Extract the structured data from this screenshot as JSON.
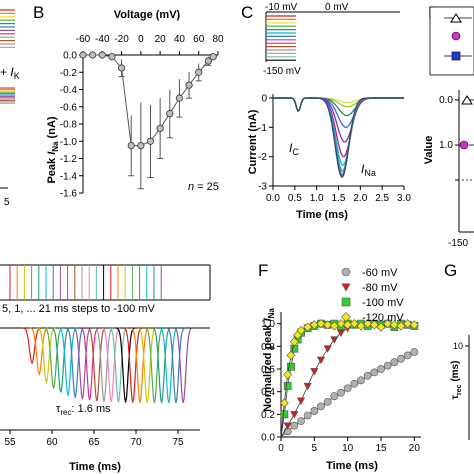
{
  "panels": {
    "A": {
      "annot_prefix": "+ ",
      "annot_symbol": "I",
      "annot_sub": "K",
      "x_tick_label": "5",
      "sweep_colors": [
        "#e41a1c",
        "#ff7f00",
        "#ffd92f",
        "#4daf4a",
        "#1b9e77",
        "#377eb8",
        "#984ea3",
        "#e7298a",
        "#66c2a5",
        "#a65628",
        "#999999",
        "#f781bf"
      ]
    },
    "B": {
      "letter": "B",
      "n_text": "n = 25",
      "chart_data": {
        "type": "scatter",
        "title": "",
        "xlabel": "Voltage (mV)",
        "ylabel_prefix": "Peak ",
        "ylabel_symbol": "I",
        "ylabel_sub": "Na",
        "ylabel_unit": " (nA)",
        "xlim": [
          -60,
          80
        ],
        "ylim": [
          -1.6,
          0.0
        ],
        "xticks": [
          -60,
          -40,
          -20,
          0,
          20,
          40,
          60,
          80
        ],
        "yticks": [
          0.0,
          -0.2,
          -0.4,
          -0.6,
          -0.8,
          -1.0,
          -1.2,
          -1.4,
          -1.6
        ],
        "x": [
          -60,
          -50,
          -40,
          -30,
          -20,
          -10,
          0,
          10,
          20,
          30,
          40,
          50,
          60,
          70,
          75
        ],
        "y": [
          0.0,
          0.0,
          0.0,
          -0.02,
          -0.15,
          -1.05,
          -1.05,
          -1.0,
          -0.85,
          -0.68,
          -0.5,
          -0.35,
          -0.2,
          -0.07,
          -0.02
        ],
        "err": [
          0,
          0,
          0,
          0.02,
          0.1,
          0.35,
          0.5,
          0.42,
          0.35,
          0.28,
          0.22,
          0.15,
          0.1,
          0.05,
          0.02
        ]
      }
    },
    "C": {
      "letter": "C",
      "v_hold": "-10 mV",
      "v_test": "0 mV",
      "v_base": "-150 mV",
      "ic_symbol": "I",
      "ic_sub": "C",
      "ina_symbol": "I",
      "ina_sub": "Na",
      "chart_data": {
        "type": "line",
        "title": "",
        "xlabel": "Time (ms)",
        "ylabel": "Current (nA)",
        "xlim": [
          0.0,
          3.0
        ],
        "ylim": [
          -3,
          0
        ],
        "xticks": [
          0.0,
          0.5,
          1.0,
          1.5,
          2.0,
          2.5,
          3.0
        ],
        "yticks": [
          0,
          -1,
          -2,
          -3
        ],
        "series_peaks": [
          -0.15,
          -0.3,
          -0.6,
          -1.0,
          -1.5,
          -2.0,
          -2.3,
          -2.5,
          -2.6,
          -2.65,
          -2.7
        ],
        "series_colors": [
          "#d4e84a",
          "#9acd32",
          "#2e8b57",
          "#4169e1",
          "#7b2fbe",
          "#c71585",
          "#00bcd4",
          "#1e90ff",
          "#3cb371",
          "#6a5acd",
          "#2f4f4f"
        ]
      }
    },
    "D": {
      "letter": "D",
      "ylabel": "Value",
      "y_tick_label": "1.0",
      "y_tick_label2": "0.0",
      "x_tick_label": "-150"
    },
    "E": {
      "protocol_text": "5, 1, ... 21 ms steps to -100 mV",
      "tau_prefix": "τ",
      "tau_sub": "rec",
      "tau_value": ": 1.6 ms",
      "xlabel": "Time (ms)",
      "xticks": [
        "55",
        "60",
        "65",
        "70",
        "75"
      ]
    },
    "F": {
      "letter": "F",
      "chart_data": {
        "type": "scatter",
        "title": "",
        "xlabel": "Time (ms)",
        "ylabel_prefix": "Normalized peak ",
        "ylabel_symbol": "I",
        "ylabel_sub": "Na",
        "xlim": [
          0,
          21
        ],
        "ylim": [
          0.0,
          1.05
        ],
        "xticks": [
          0,
          5,
          10,
          15,
          20
        ],
        "yticks": [
          0.0,
          0.2,
          0.4,
          0.6,
          0.8,
          1.0
        ],
        "series": [
          {
            "name": "-60 mV",
            "color": "#b0b0b0",
            "marker": "circle",
            "x": [
              1,
              2,
              3,
              4,
              5,
              6,
              7,
              8,
              9,
              10,
              11,
              12,
              13,
              14,
              15,
              16,
              17,
              18,
              19,
              20
            ],
            "y": [
              0.05,
              0.1,
              0.14,
              0.19,
              0.23,
              0.27,
              0.31,
              0.36,
              0.39,
              0.43,
              0.47,
              0.5,
              0.54,
              0.57,
              0.6,
              0.63,
              0.66,
              0.69,
              0.72,
              0.75
            ]
          },
          {
            "name": "-80 mV",
            "color": "#cc1f1f",
            "marker": "triangle-down",
            "x": [
              1,
              2,
              3,
              4,
              5,
              6,
              7,
              8,
              9,
              10
            ],
            "y": [
              0.1,
              0.2,
              0.32,
              0.45,
              0.58,
              0.68,
              0.78,
              0.86,
              0.92,
              0.96
            ]
          },
          {
            "name": "-100 mV",
            "color": "#33cc33",
            "marker": "square",
            "x": [
              0.5,
              1,
              1.5,
              2,
              2.5,
              3,
              4,
              5,
              6,
              7,
              8,
              9,
              10,
              11,
              12,
              13,
              14,
              15,
              16,
              17,
              18,
              19,
              20
            ],
            "y": [
              0.2,
              0.45,
              0.62,
              0.78,
              0.86,
              0.92,
              0.96,
              0.98,
              1.0,
              0.99,
              1.0,
              0.98,
              1.0,
              0.99,
              1.0,
              0.98,
              1.0,
              0.99,
              1.0,
              0.97,
              1.0,
              0.99,
              0.98
            ]
          },
          {
            "name": "-120 mV",
            "color": "#f5e61a",
            "marker": "diamond",
            "x": [
              0.5,
              1,
              1.5,
              2,
              2.5,
              3,
              4,
              5,
              6,
              7,
              8,
              9,
              10,
              11,
              12,
              13,
              14,
              15,
              16,
              17,
              18,
              19,
              20
            ],
            "y": [
              0.3,
              0.55,
              0.72,
              0.84,
              0.9,
              0.94,
              0.97,
              0.99,
              1.0,
              0.99,
              0.98,
              1.0,
              0.99,
              1.0,
              0.98,
              1.0,
              0.99,
              0.97,
              1.0,
              0.99,
              0.98,
              1.0,
              0.99
            ]
          }
        ]
      }
    },
    "G": {
      "letter": "G",
      "ylabel_prefix": "τ",
      "ylabel_sub": "rec",
      "ylabel_unit": " (ms)",
      "y_tick_label": "10"
    }
  }
}
